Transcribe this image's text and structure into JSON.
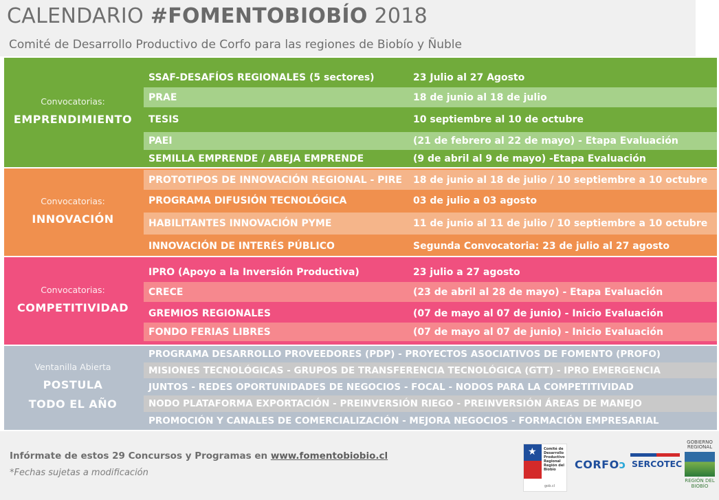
{
  "header": {
    "title_light": "CALENDARIO",
    "title_bold": "#FOMENTOBIOBÍO",
    "title_year": "2018",
    "subtitle": "Comité de Desarrollo Productivo de Corfo para las regiones de Biobío y Ñuble"
  },
  "colors": {
    "green_dark": "#71ab3b",
    "green_light": "#a6d18a",
    "orange_dark": "#f0904e",
    "orange_light": "#f5b58a",
    "pink_dark": "#f0507f",
    "pink_light": "#f6888e",
    "gray_dark": "#b6c0cc",
    "gray_light": "#c9c9c9"
  },
  "sections": [
    {
      "sub": "Convocatorias:",
      "main": [
        "EMPRENDIMIENTO"
      ],
      "rows": [
        {
          "name": "SSAF-DESAFÍOS REGIONALES (5 sectores)",
          "date": "23 Julio al 27 Agosto"
        },
        {
          "name": "PRAE",
          "date": "18 de junio al 18 de julio"
        },
        {
          "name": "TESIS",
          "date": "10 septiembre al 10 de octubre"
        },
        {
          "name": "PAEI",
          "date": "(21 de febrero al 22 de mayo) - Etapa Evaluación"
        },
        {
          "name": "SEMILLA EMPRENDE / ABEJA EMPRENDE",
          "date": "(9 de abril al 9 de mayo)  -Etapa Evaluación"
        }
      ]
    },
    {
      "sub": "Convocatorias:",
      "main": [
        "INNOVACIÓN"
      ],
      "rows": [
        {
          "name": "PROTOTIPOS DE INNOVACIÓN  REGIONAL - PIRE",
          "date": "18 de junio al 18 de julio  / 10  septiembre a 10 octubre"
        },
        {
          "name": "PROGRAMA DIFUSIÓN TECNOLÓGICA",
          "date": " 03 de julio a 03 agosto"
        },
        {
          "name": "HABILITANTES INNOVACIÓN PYME",
          "date": " 11 de junio al 11 de julio  / 10 septiembre a 10 octubre"
        },
        {
          "name": "INNOVACIÓN DE INTERÉS PÚBLICO",
          "date": " Segunda Convocatoria: 23 de julio al 27 agosto"
        }
      ]
    },
    {
      "sub": "Convocatorias:",
      "main": [
        "COMPETITIVIDAD"
      ],
      "rows": [
        {
          "name": "IPRO (Apoyo a la Inversión Productiva)",
          "date": "23 julio a 27 agosto"
        },
        {
          "name": "CRECE",
          "date": "(23 de abril al 28 de mayo) - Etapa Evaluación"
        },
        {
          "name": "GREMIOS REGIONALES",
          "date": "(07 de mayo al 07 de junio) - Inicio Evaluación"
        },
        {
          "name": "FONDO FERIAS LIBRES",
          "date": "(07 de mayo al 07 de junio) - Inicio Evaluación"
        }
      ]
    },
    {
      "sub": "Ventanilla Abierta",
      "main": [
        "POSTULA",
        "TODO EL AÑO"
      ],
      "rows": [
        {
          "name": "PROGRAMA DESARROLLO PROVEEDORES (PDP) - PROYECTOS ASOCIATIVOS DE FOMENTO (PROFO)"
        },
        {
          "name": "MISIONES TECNOLÓGICAS - GRUPOS DE TRANSFERENCIA TECNOLÓGICA (GTT) - IPRO EMERGENCIA"
        },
        {
          "name": "JUNTOS  -  REDES OPORTUNIDADES DE NEGOCIOS  -  FOCAL  -  NODOS PARA LA COMPETITIVIDAD"
        },
        {
          "name": "NODO PLATAFORMA EXPORTACIÓN  -  PREINVERSIÓN RIEGO  -  PREINVERSIÓN ÁREAS DE MANEJO"
        },
        {
          "name": "PROMOCIÓN Y CANALES DE COMERCIALIZACIÓN - MEJORA NEGOCIOS - FORMACIÓN EMPRESARIAL"
        }
      ]
    }
  ],
  "footer": {
    "info_text": "Infórmate de estos 29 Concursos y Programas en ",
    "info_link": "www.fomentobiobio.cl",
    "note": "*Fechas sujetas a modificación"
  },
  "logos": {
    "gob_lines": [
      "Comité de",
      "Desarrollo",
      "Productivo",
      "Regional",
      "Región del Biobío"
    ],
    "gob_bottom": "gob.cl",
    "corfo_text": "CORFO",
    "corfo_icon": "corfo-swoosh-icon",
    "sercotec_text": "SERCOTEC",
    "region_top": [
      "GOBIERNO",
      "REGIONAL"
    ],
    "region_bottom": [
      "REGIÓN DEL",
      "BIOBÍO"
    ]
  }
}
